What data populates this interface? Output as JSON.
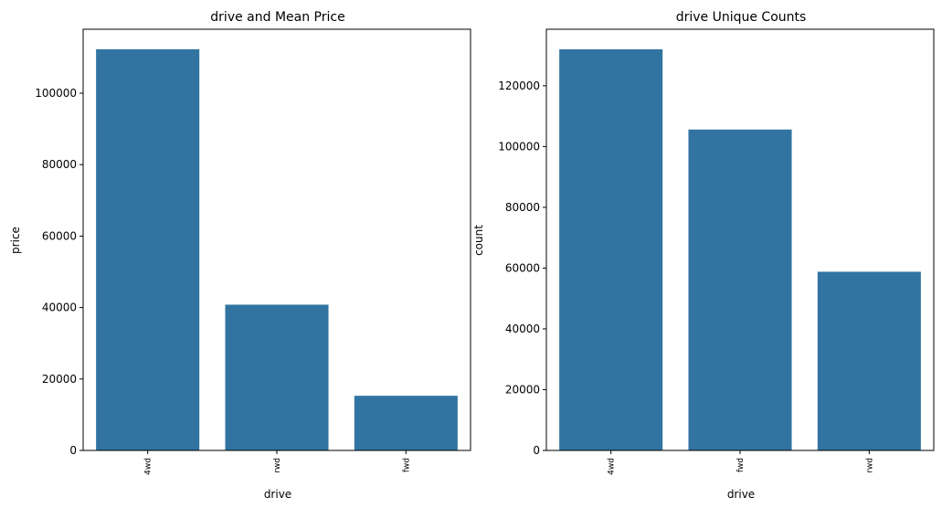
{
  "chart_data": [
    {
      "type": "bar",
      "title": "drive and Mean Price",
      "xlabel": "drive",
      "ylabel": "price",
      "categories": [
        "4wd",
        "rwd",
        "fwd"
      ],
      "values": [
        112300,
        40800,
        15300
      ],
      "ylim": [
        0,
        117900
      ],
      "yticks": [
        0,
        20000,
        40000,
        60000,
        80000,
        100000
      ],
      "bar_color": "#3274a1",
      "grid": false
    },
    {
      "type": "bar",
      "title": "drive Unique Counts",
      "xlabel": "drive",
      "ylabel": "count",
      "categories": [
        "4wd",
        "fwd",
        "rwd"
      ],
      "values": [
        132000,
        105600,
        58800
      ],
      "ylim": [
        0,
        138600
      ],
      "yticks": [
        0,
        20000,
        40000,
        60000,
        80000,
        100000,
        120000
      ],
      "bar_color": "#3274a1",
      "grid": false
    }
  ]
}
